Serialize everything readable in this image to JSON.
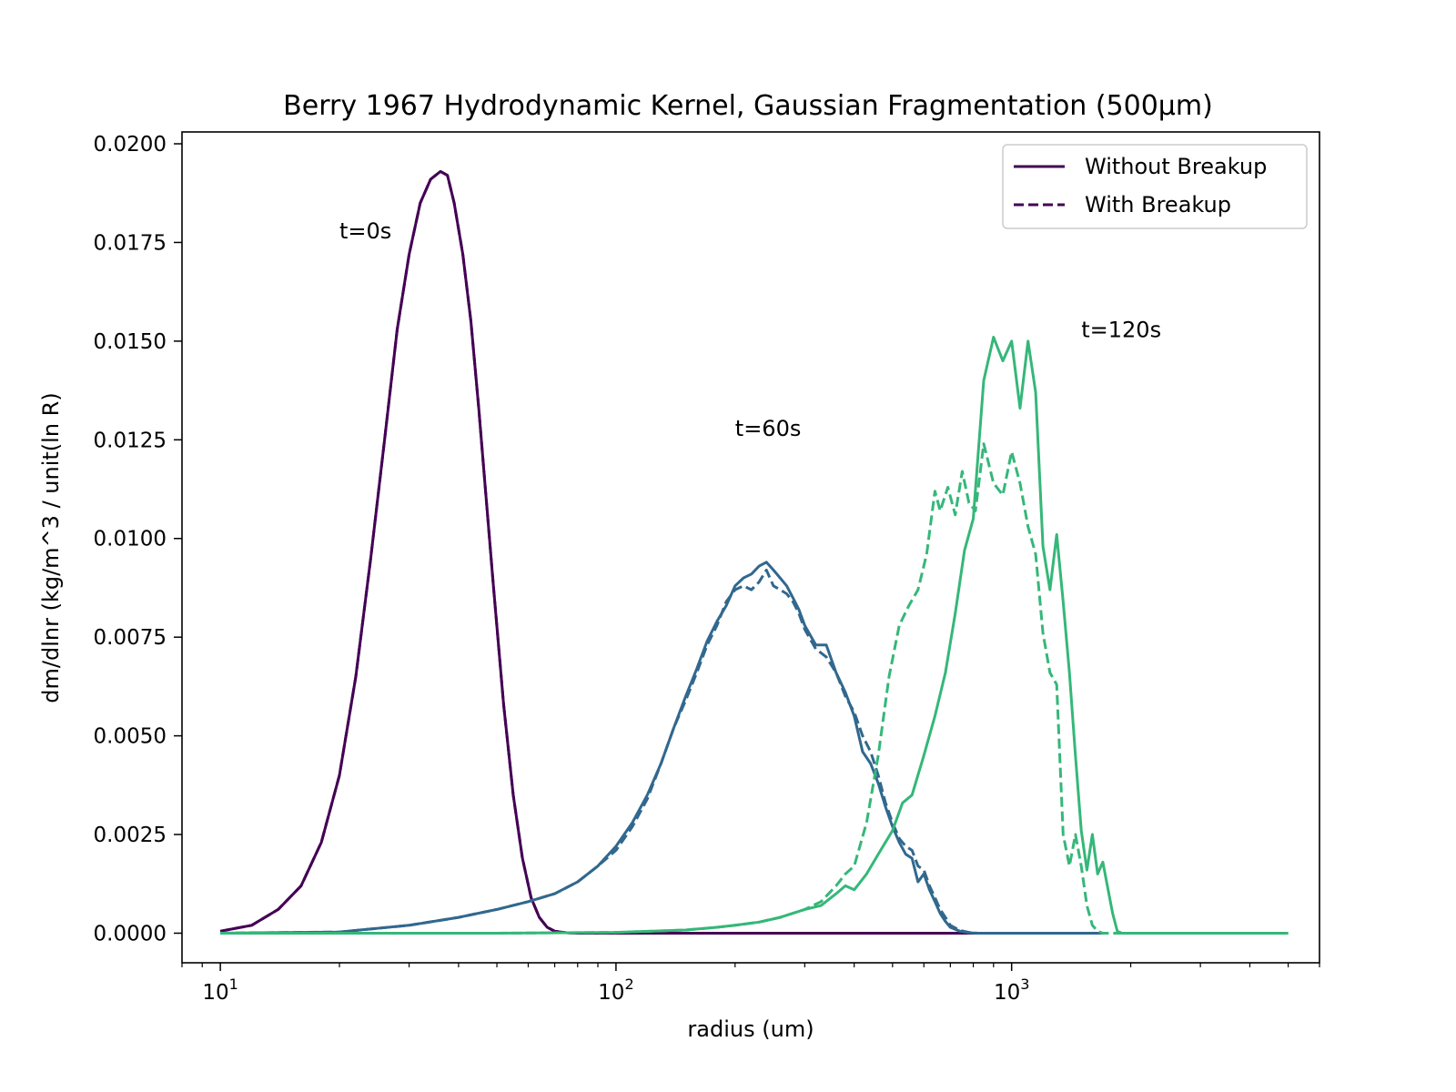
{
  "chart_data": {
    "type": "line",
    "title": "Berry 1967 Hydrodynamic Kernel, Gaussian Fragmentation (500µm)",
    "xlabel": "radius (um)",
    "ylabel": "dm/dlnr (kg/m^3 / unit(ln R)",
    "x_scale": "log",
    "xlim": [
      8,
      6000
    ],
    "ylim": [
      -0.00075,
      0.0203
    ],
    "x_major_ticks": [
      {
        "value": 10,
        "base": "10",
        "exp": "1"
      },
      {
        "value": 100,
        "base": "10",
        "exp": "2"
      },
      {
        "value": 1000,
        "base": "10",
        "exp": "3"
      }
    ],
    "y_ticks": [
      {
        "value": 0.0,
        "label": "0.0000"
      },
      {
        "value": 0.0025,
        "label": "0.0025"
      },
      {
        "value": 0.005,
        "label": "0.0050"
      },
      {
        "value": 0.0075,
        "label": "0.0075"
      },
      {
        "value": 0.01,
        "label": "0.0100"
      },
      {
        "value": 0.0125,
        "label": "0.0125"
      },
      {
        "value": 0.015,
        "label": "0.0150"
      },
      {
        "value": 0.0175,
        "label": "0.0175"
      },
      {
        "value": 0.02,
        "label": "0.0200"
      }
    ],
    "grid": false,
    "legend": {
      "placement": "top-right",
      "entries": [
        {
          "label": "Without Breakup",
          "style": "solid",
          "color": "#440154"
        },
        {
          "label": "With Breakup",
          "style": "dashed",
          "color": "#440154"
        }
      ]
    },
    "annotations": [
      {
        "text": "t=0s",
        "x": 20,
        "y": 0.0176
      },
      {
        "text": "t=60s",
        "x": 200,
        "y": 0.0126
      },
      {
        "text": "t=120s",
        "x": 1500,
        "y": 0.0151
      }
    ],
    "series": [
      {
        "time": "t=0s",
        "color": "#440154",
        "style": "solid",
        "x": [
          10,
          12,
          14,
          16,
          18,
          20,
          22,
          24,
          26,
          28,
          30,
          32,
          34,
          36,
          37.5,
          39,
          41,
          43,
          45,
          47,
          49,
          52,
          55,
          58,
          61,
          64,
          67,
          70,
          75,
          80,
          100,
          200,
          500,
          1000,
          1700
        ],
        "y": [
          5e-05,
          0.0002,
          0.0006,
          0.0012,
          0.0023,
          0.004,
          0.0065,
          0.0095,
          0.0125,
          0.0153,
          0.0172,
          0.0185,
          0.0191,
          0.0193,
          0.0192,
          0.0185,
          0.0172,
          0.0155,
          0.0133,
          0.011,
          0.0088,
          0.0058,
          0.0035,
          0.0019,
          0.0009,
          0.0004,
          0.00015,
          5e-05,
          1e-05,
          0,
          0,
          0,
          0,
          0,
          0
        ]
      },
      {
        "time": "t=0s",
        "color": "#440154",
        "style": "dashed",
        "x": [
          10,
          12,
          14,
          16,
          18,
          20,
          22,
          24,
          26,
          28,
          30,
          32,
          34,
          36,
          37.5,
          39,
          41,
          43,
          45,
          47,
          49,
          52,
          55,
          58,
          61,
          64,
          67,
          70,
          75,
          80,
          100,
          200,
          500,
          1000,
          1700
        ],
        "y": [
          5e-05,
          0.0002,
          0.0006,
          0.0012,
          0.0023,
          0.004,
          0.0065,
          0.0095,
          0.0125,
          0.0153,
          0.0172,
          0.0185,
          0.0191,
          0.0193,
          0.0192,
          0.0185,
          0.0172,
          0.0155,
          0.0133,
          0.011,
          0.0088,
          0.0058,
          0.0035,
          0.0019,
          0.0009,
          0.0004,
          0.00015,
          5e-05,
          1e-05,
          0,
          0,
          0,
          0,
          0,
          0
        ]
      },
      {
        "time": "t=60s",
        "color": "#31688e",
        "style": "solid",
        "x": [
          10,
          20,
          30,
          40,
          50,
          60,
          70,
          80,
          90,
          100,
          110,
          120,
          130,
          140,
          150,
          160,
          170,
          180,
          190,
          200,
          210,
          220,
          230,
          240,
          250,
          260,
          270,
          280,
          290,
          300,
          320,
          340,
          360,
          380,
          400,
          420,
          440,
          460,
          480,
          500,
          520,
          540,
          560,
          580,
          600,
          620,
          640,
          660,
          680,
          700,
          740,
          780,
          820,
          900,
          1000,
          1700
        ],
        "y": [
          0,
          3e-05,
          0.0002,
          0.0004,
          0.0006,
          0.0008,
          0.001,
          0.0013,
          0.0017,
          0.0022,
          0.0028,
          0.0035,
          0.0043,
          0.0052,
          0.006,
          0.0067,
          0.0074,
          0.0079,
          0.0083,
          0.0088,
          0.009,
          0.0091,
          0.0093,
          0.0094,
          0.0092,
          0.009,
          0.0088,
          0.0085,
          0.0082,
          0.0078,
          0.0073,
          0.0073,
          0.0066,
          0.0061,
          0.0055,
          0.0046,
          0.0043,
          0.0038,
          0.0032,
          0.0027,
          0.0023,
          0.002,
          0.0019,
          0.0013,
          0.0015,
          0.0011,
          0.0008,
          0.0005,
          0.0003,
          0.00015,
          5e-05,
          1e-05,
          0,
          0,
          0,
          0
        ]
      },
      {
        "time": "t=60s",
        "color": "#31688e",
        "style": "dashed",
        "x": [
          10,
          20,
          30,
          40,
          50,
          60,
          70,
          80,
          90,
          100,
          110,
          120,
          130,
          140,
          150,
          160,
          170,
          180,
          190,
          200,
          210,
          220,
          230,
          240,
          250,
          260,
          270,
          280,
          290,
          300,
          320,
          340,
          360,
          380,
          400,
          420,
          440,
          460,
          480,
          500,
          520,
          540,
          560,
          580,
          600,
          620,
          640,
          660,
          680,
          700,
          740,
          780,
          820,
          900,
          1000,
          1700
        ],
        "y": [
          0,
          3e-05,
          0.0002,
          0.0004,
          0.0006,
          0.0008,
          0.001,
          0.0013,
          0.0017,
          0.0021,
          0.0027,
          0.0034,
          0.0043,
          0.0052,
          0.0059,
          0.0066,
          0.0073,
          0.0078,
          0.0084,
          0.0087,
          0.0088,
          0.0087,
          0.0089,
          0.0092,
          0.0088,
          0.0087,
          0.0086,
          0.0084,
          0.0081,
          0.0077,
          0.0072,
          0.007,
          0.0066,
          0.006,
          0.0056,
          0.005,
          0.0046,
          0.004,
          0.0033,
          0.0028,
          0.0024,
          0.0022,
          0.0021,
          0.0017,
          0.0016,
          0.0012,
          0.0009,
          0.0006,
          0.0004,
          0.0002,
          7e-05,
          2e-05,
          0,
          0,
          0,
          0
        ]
      },
      {
        "time": "t=120s",
        "color": "#35b779",
        "style": "solid",
        "x": [
          10,
          50,
          100,
          150,
          180,
          200,
          230,
          260,
          300,
          330,
          360,
          380,
          400,
          430,
          460,
          500,
          530,
          560,
          600,
          640,
          680,
          720,
          760,
          800,
          850,
          900,
          950,
          1000,
          1050,
          1100,
          1150,
          1200,
          1250,
          1300,
          1350,
          1400,
          1450,
          1500,
          1550,
          1600,
          1650,
          1700,
          1800,
          1850,
          1900,
          2500,
          5000
        ],
        "y": [
          0,
          0,
          2e-05,
          8e-05,
          0.00015,
          0.0002,
          0.00028,
          0.0004,
          0.0006,
          0.0007,
          0.001,
          0.0012,
          0.0011,
          0.0015,
          0.002,
          0.0026,
          0.0033,
          0.0035,
          0.0045,
          0.0055,
          0.0066,
          0.0081,
          0.0097,
          0.0105,
          0.014,
          0.0151,
          0.0145,
          0.015,
          0.0133,
          0.015,
          0.0137,
          0.0098,
          0.0087,
          0.0101,
          0.0084,
          0.0066,
          0.0045,
          0.0026,
          0.0016,
          0.0025,
          0.0015,
          0.0018,
          0.0005,
          5e-05,
          0,
          0,
          0
        ]
      },
      {
        "time": "t=120s",
        "color": "#35b779",
        "style": "dashed",
        "x": [
          10,
          50,
          100,
          150,
          180,
          200,
          230,
          260,
          300,
          330,
          360,
          380,
          400,
          430,
          460,
          490,
          520,
          550,
          580,
          610,
          640,
          660,
          690,
          720,
          750,
          780,
          810,
          850,
          900,
          950,
          1000,
          1050,
          1100,
          1150,
          1200,
          1250,
          1300,
          1350,
          1400,
          1450,
          1500,
          1550,
          1600,
          1650,
          1700,
          1750,
          1800,
          2500,
          5000
        ],
        "y": [
          0,
          0,
          2e-05,
          8e-05,
          0.00015,
          0.0002,
          0.00028,
          0.0004,
          0.0006,
          0.0008,
          0.0012,
          0.0015,
          0.0017,
          0.0028,
          0.0045,
          0.0065,
          0.0078,
          0.0083,
          0.0087,
          0.0096,
          0.0112,
          0.0107,
          0.0113,
          0.0106,
          0.0117,
          0.0109,
          0.0107,
          0.0124,
          0.0114,
          0.0111,
          0.0122,
          0.0114,
          0.0103,
          0.0096,
          0.0076,
          0.0066,
          0.0063,
          0.0025,
          0.0017,
          0.0025,
          0.0017,
          0.0007,
          0.0002,
          5e-05,
          0,
          0,
          0,
          0,
          0
        ]
      }
    ]
  }
}
